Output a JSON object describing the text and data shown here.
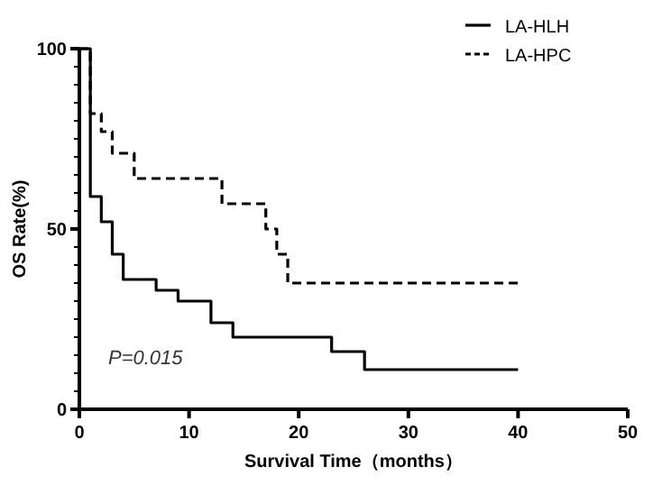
{
  "chart_data": {
    "type": "step",
    "xlabel": "Survival Time（months）",
    "ylabel": "OS Rate(%)",
    "xlim": [
      0,
      50
    ],
    "ylim": [
      0,
      100
    ],
    "xticks": [
      0,
      10,
      20,
      30,
      40,
      50
    ],
    "yticks": [
      0,
      {
        "value": 5,
        "label": null
      },
      {
        "value": 10,
        "label": null
      },
      {
        "value": 15,
        "label": null
      },
      {
        "value": 20,
        "label": null
      },
      {
        "value": 25,
        "label": null
      },
      {
        "value": 30,
        "label": null
      },
      {
        "value": 35,
        "label": null
      },
      {
        "value": 40,
        "label": null
      },
      {
        "value": 45,
        "label": null
      },
      50,
      {
        "value": 55,
        "label": null
      },
      {
        "value": 60,
        "label": null
      },
      {
        "value": 65,
        "label": null
      },
      {
        "value": 70,
        "label": null
      },
      {
        "value": 75,
        "label": null
      },
      {
        "value": 80,
        "label": null
      },
      {
        "value": 85,
        "label": null
      },
      {
        "value": 90,
        "label": null
      },
      {
        "value": 95,
        "label": null
      },
      100
    ],
    "grid": false,
    "legend": "top right",
    "annotations": [
      "P=0.015"
    ],
    "series": [
      {
        "name": "LA-HLH",
        "color": "#000000",
        "line_style": "solid",
        "x": [
          0,
          1,
          2,
          3,
          4,
          7,
          9,
          12,
          14,
          23,
          26,
          40
        ],
        "values": [
          100,
          59,
          52,
          43,
          36,
          33,
          30,
          24,
          20,
          16,
          11,
          11
        ]
      },
      {
        "name": "LA-HPC",
        "color": "#000000",
        "line_style": "dashed",
        "x": [
          0,
          1,
          2,
          3,
          5,
          13,
          17,
          18,
          19,
          40
        ],
        "values": [
          100,
          82,
          77,
          71,
          64,
          57,
          50,
          43,
          35,
          35
        ]
      }
    ]
  }
}
